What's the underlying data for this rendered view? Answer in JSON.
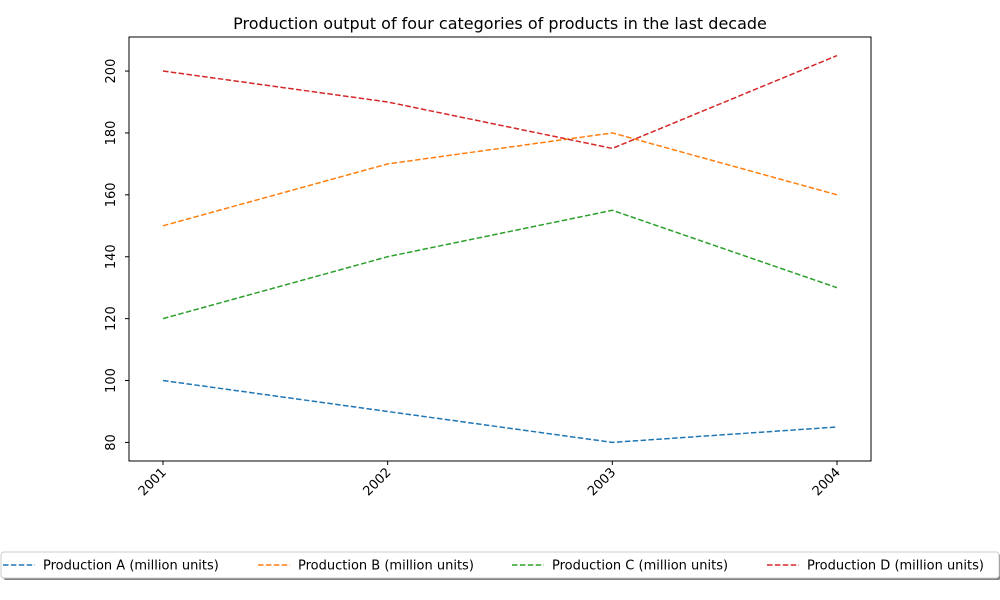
{
  "chart_data": {
    "type": "line",
    "title": "Production output of four categories of products in the last decade",
    "xlabel": "",
    "ylabel": "",
    "categories": [
      "2001",
      "2002",
      "2003",
      "2004"
    ],
    "series": [
      {
        "name": "Production A (million units)",
        "color": "#1f77b4",
        "values": [
          100,
          90,
          80,
          85
        ]
      },
      {
        "name": "Production B (million units)",
        "color": "#ff7f0e",
        "values": [
          150,
          170,
          180,
          160
        ]
      },
      {
        "name": "Production C (million units)",
        "color": "#2ca02c",
        "values": [
          120,
          140,
          155,
          130
        ]
      },
      {
        "name": "Production D (million units)",
        "color": "#d62728",
        "values": [
          200,
          190,
          175,
          205
        ]
      }
    ],
    "line_style": "dashed",
    "ylim": [
      74,
      211
    ],
    "yticks": [
      80,
      100,
      120,
      140,
      160,
      180,
      200
    ],
    "x_tick_rotation": 45,
    "y_tick_rotation": 90,
    "grid": false,
    "legend_position": "bottom-center",
    "legend_columns": 4
  }
}
